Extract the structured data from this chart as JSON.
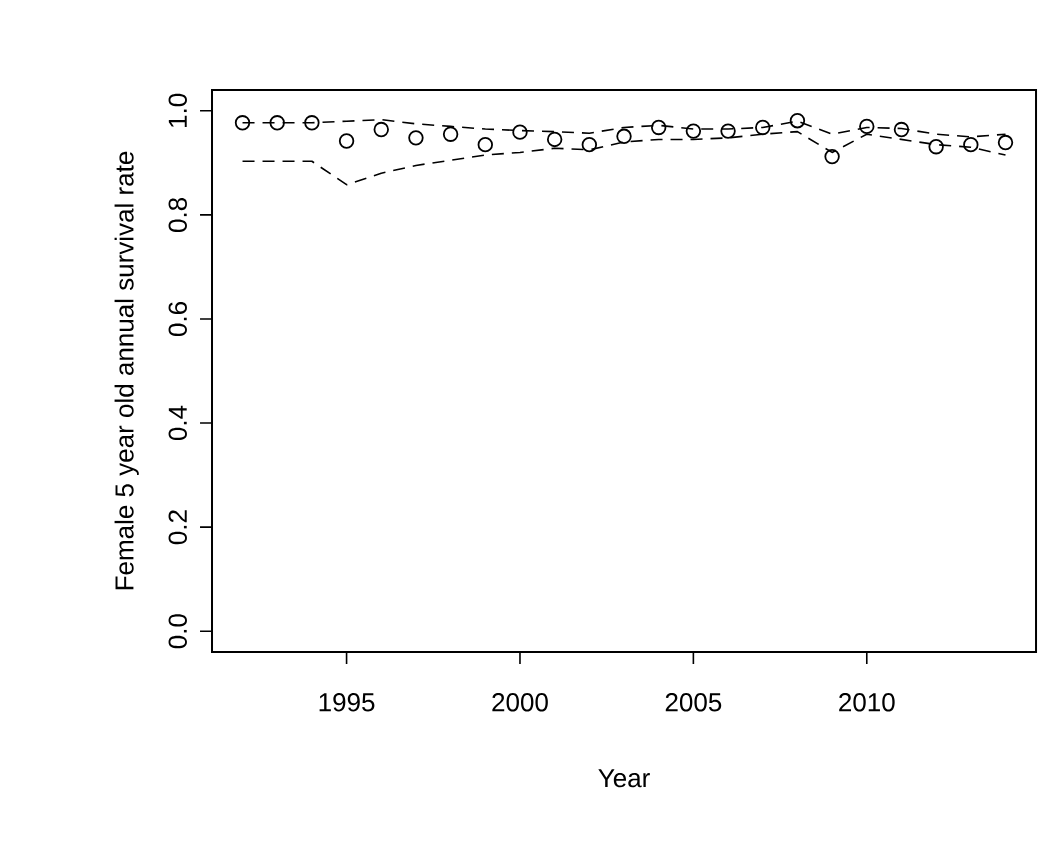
{
  "chart_data": {
    "type": "line",
    "xlabel": "Year",
    "ylabel": "Female 5 year old annual survival rate",
    "x": [
      1992,
      1993,
      1994,
      1995,
      1996,
      1997,
      1998,
      1999,
      2000,
      2001,
      2002,
      2003,
      2004,
      2005,
      2006,
      2007,
      2008,
      2009,
      2010,
      2011,
      2012,
      2013,
      2014
    ],
    "series": [
      {
        "type": "scatter",
        "marker": "circle",
        "color": "#000000",
        "values": [
          0.977,
          0.977,
          0.977,
          0.942,
          0.964,
          0.948,
          0.955,
          0.935,
          0.959,
          0.945,
          0.935,
          0.951,
          0.968,
          0.961,
          0.961,
          0.968,
          0.981,
          0.912,
          0.97,
          0.964,
          0.931,
          0.935,
          0.939
        ]
      },
      {
        "line_style": "dashed",
        "color": "#000000",
        "values": [
          0.977,
          0.977,
          0.977,
          0.98,
          0.983,
          0.975,
          0.97,
          0.965,
          0.962,
          0.96,
          0.957,
          0.968,
          0.972,
          0.965,
          0.965,
          0.968,
          0.98,
          0.955,
          0.968,
          0.966,
          0.955,
          0.95,
          0.955
        ]
      },
      {
        "line_style": "dashed",
        "color": "#000000",
        "values": [
          0.903,
          0.903,
          0.903,
          0.858,
          0.88,
          0.895,
          0.905,
          0.915,
          0.92,
          0.928,
          0.925,
          0.94,
          0.945,
          0.945,
          0.948,
          0.955,
          0.96,
          0.92,
          0.955,
          0.945,
          0.935,
          0.93,
          0.915
        ]
      }
    ],
    "xlim": [
      1991.12,
      2014.88
    ],
    "ylim": [
      -0.04,
      1.04
    ],
    "xticks": [
      1995,
      2000,
      2005,
      2010
    ],
    "yticks": [
      {
        "value": 0,
        "label": "0.0"
      },
      0.2,
      0.4,
      0.6,
      0.8,
      {
        "value": 1,
        "label": "1.0"
      }
    ],
    "grid": false
  }
}
